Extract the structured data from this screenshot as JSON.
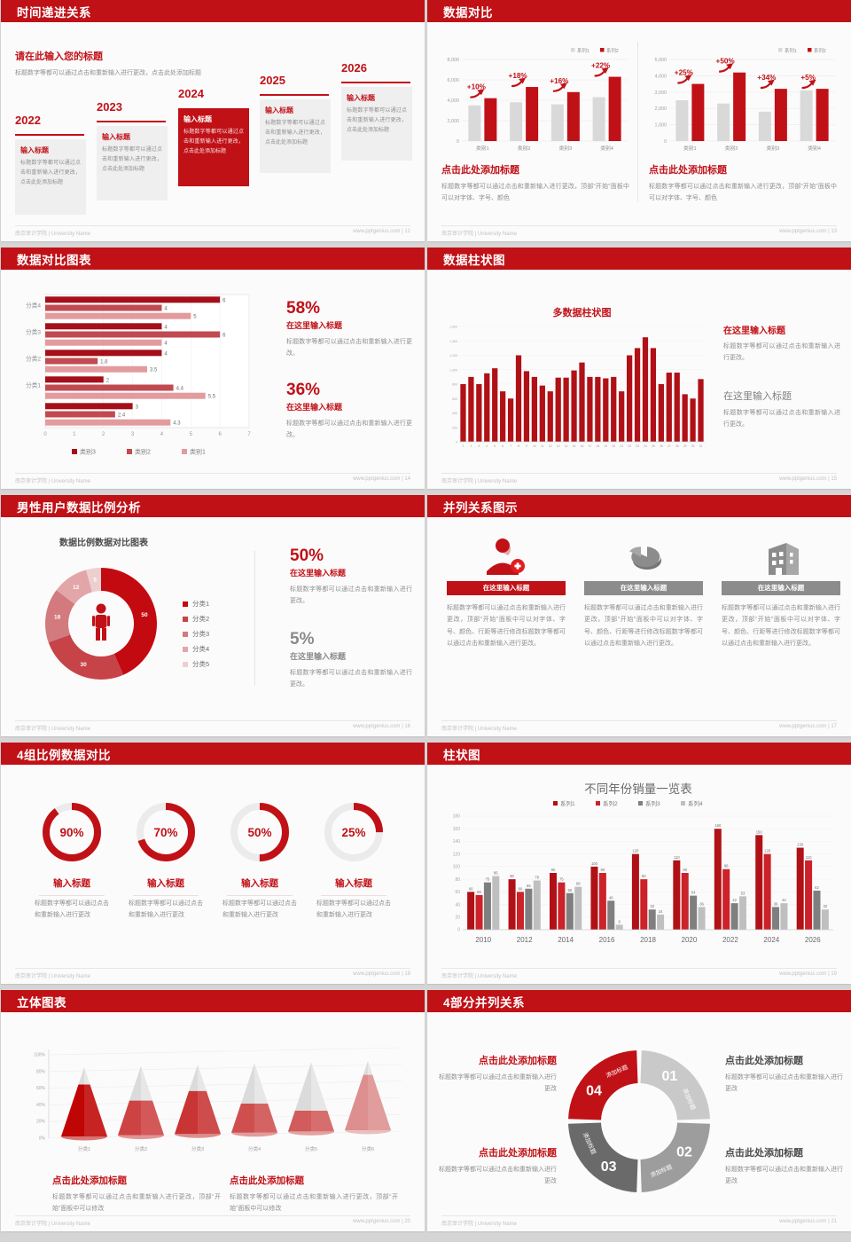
{
  "footer": {
    "left": "南京审计学院 | University Name"
  },
  "slides": {
    "timeline": {
      "header": "时间递进关系",
      "footer_right": "www.pptgenius.com | 12",
      "intro_title": "请在此输入您的标题",
      "intro_body": "标题数字等都可以通过点击和重新输入进行更改，点击此处添加标题",
      "items": [
        {
          "year": "2022",
          "title": "输入标题",
          "body": "标题数字等都可以通过点击和重新输入进行更改，点击此处添加标题",
          "highlight": false
        },
        {
          "year": "2023",
          "title": "输入标题",
          "body": "标题数字等都可以通过点击和重新输入进行更改，点击此处添加标题",
          "highlight": false
        },
        {
          "year": "2024",
          "title": "输入标题",
          "body": "标题数字等都可以通过点击和重新输入进行更改，点击此处添加标题",
          "highlight": true
        },
        {
          "year": "2025",
          "title": "输入标题",
          "body": "标题数字等都可以通过点击和重新输入进行更改，点击此处添加标题",
          "highlight": false
        },
        {
          "year": "2026",
          "title": "输入标题",
          "body": "标题数字等都可以通过点击和重新输入进行更改，点击此处添加标题",
          "highlight": false
        }
      ]
    },
    "compare": {
      "header": "数据对比",
      "footer_right": "www.pptgenius.com | 13",
      "blocks": [
        {
          "title": "点击此处添加标题",
          "body": "标题数字等都可以通过点击和重新输入进行更改，顶部“开始”面板中可以对字体、字号、颜色"
        },
        {
          "title": "点击此处添加标题",
          "body": "标题数字等都可以通过点击和重新输入进行更改，顶部“开始”面板中可以对字体、字号、颜色"
        }
      ]
    },
    "hbar": {
      "header": "数据对比图表",
      "footer_right": "www.pptgenius.com | 14",
      "stats": [
        {
          "pct": "58%",
          "title": "在这里输入标题",
          "body": "标题数字等都可以通过点击和重新输入进行更改。",
          "red": true
        },
        {
          "pct": "36%",
          "title": "在这里输入标题",
          "body": "标题数字等都可以通过点击和重新输入进行更改。",
          "red": true
        }
      ]
    },
    "col31": {
      "header": "数据柱状图",
      "footer_right": "www.pptgenius.com | 15",
      "stats": [
        {
          "title": "在这里输入标题",
          "body": "标题数字等都可以通过点击和重新输入进行更改。",
          "red": true
        },
        {
          "title": "在这里输入标题",
          "body": "标题数字等都可以通过点击和重新输入进行更改。",
          "red": false
        }
      ]
    },
    "donut": {
      "header": "男性用户数据比例分析",
      "footer_right": "www.pptgenius.com | 16",
      "stats": [
        {
          "pct": "50%",
          "title": "在这里输入标题",
          "body": "标题数字等都可以通过点击和重新输入进行更改。",
          "red": true
        },
        {
          "pct": "5%",
          "title": "在这里输入标题",
          "body": "标题数字等都可以通过点击和重新输入进行更改。",
          "red": false
        }
      ]
    },
    "parallel": {
      "header": "并列关系图示",
      "footer_right": "www.pptgenius.com | 17",
      "columns": [
        {
          "icon": "person-plus",
          "title": "在这里输入标题",
          "red": true,
          "body": "标题数字等都可以通过点击和重新输入进行更改，顶部“开始”面板中可以对字体、字号、颜色、行距等进行修改标题数字等都可以通过点击和重新输入进行更改。"
        },
        {
          "icon": "pie-3d",
          "title": "在这里输入标题",
          "red": false,
          "body": "标题数字等都可以通过点击和重新输入进行更改，顶部“开始”面板中可以对字体、字号、颜色、行距等进行修改标题数字等都可以通过点击和重新输入进行更改。"
        },
        {
          "icon": "building",
          "title": "在这里输入标题",
          "red": false,
          "body": "标题数字等都可以通过点击和重新输入进行更改，顶部“开始”面板中可以对字体、字号、颜色、行距等进行修改标题数字等都可以通过点击和重新输入进行更改。"
        }
      ]
    },
    "rings": {
      "header": "4组比例数据对比",
      "footer_right": "www.pptgenius.com | 18",
      "items": [
        {
          "label": "90%",
          "title": "输入标题",
          "body": "标题数字等都可以通过点击和重新输入进行更改"
        },
        {
          "label": "70%",
          "title": "输入标题",
          "body": "标题数字等都可以通过点击和重新输入进行更改"
        },
        {
          "label": "50%",
          "title": "输入标题",
          "body": "标题数字等都可以通过点击和重新输入进行更改"
        },
        {
          "label": "25%",
          "title": "输入标题",
          "body": "标题数字等都可以通过点击和重新输入进行更改"
        }
      ]
    },
    "years": {
      "header": "柱状图",
      "footer_right": "www.pptgenius.com | 19"
    },
    "cones": {
      "header": "立体图表",
      "footer_right": "www.pptgenius.com | 20",
      "blocks": [
        {
          "title": "点击此处添加标题",
          "body": "标题数字等都可以通过点击和重新输入进行更改，顶部“开始”面板中可以修改"
        },
        {
          "title": "点击此处添加标题",
          "body": "标题数字等都可以通过点击和重新输入进行更改，顶部“开始”面板中可以修改"
        }
      ]
    },
    "ring4": {
      "header": "4部分并列关系",
      "footer_right": "www.pptgenius.com | 21",
      "segment_label": "添加标题",
      "blocks": [
        {
          "side": "left",
          "row": "top",
          "red": true,
          "title": "点击此处添加标题",
          "body": "标题数字等都可以通过点击和重新输入进行更改"
        },
        {
          "side": "right",
          "row": "top",
          "red": false,
          "title": "点击此处添加标题",
          "body": "标题数字等都可以通过点击和重新输入进行更改"
        },
        {
          "side": "left",
          "row": "bottom",
          "red": true,
          "title": "点击此处添加标题",
          "body": "标题数字等都可以通过点击和重新输入进行更改"
        },
        {
          "side": "right",
          "row": "bottom",
          "red": false,
          "title": "点击此处添加标题",
          "body": "标题数字等都可以通过点击和重新输入进行更改"
        }
      ]
    }
  },
  "chart_data": {
    "compare_left": {
      "type": "bar",
      "categories": [
        "类别1",
        "类别2",
        "类别3",
        "类别4"
      ],
      "series": [
        {
          "name": "系列1",
          "values": [
            3500,
            3800,
            3600,
            4300
          ]
        },
        {
          "name": "系列2",
          "values": [
            4200,
            5300,
            4800,
            6300
          ]
        }
      ],
      "annotations": [
        "+10%",
        "+18%",
        "+16%",
        "+22%"
      ],
      "ylim": [
        0,
        8000
      ],
      "yticks": [
        "0",
        "2,000",
        "4,000",
        "6,000",
        "8,000"
      ],
      "colors": [
        "#d9d9d9",
        "#c01117"
      ],
      "legend_position": "top-right"
    },
    "compare_right": {
      "type": "bar",
      "categories": [
        "类别1",
        "类别2",
        "类别3",
        "类别4"
      ],
      "series": [
        {
          "name": "系列1",
          "values": [
            2500,
            2300,
            1800,
            3100
          ]
        },
        {
          "name": "系列2",
          "values": [
            3500,
            4200,
            3200,
            3200
          ]
        }
      ],
      "annotations": [
        "+25%",
        "+50%",
        "+34%",
        "+5%"
      ],
      "ylim": [
        0,
        5000
      ],
      "yticks": [
        "0",
        "1,000",
        "2,000",
        "3,000",
        "4,000",
        "5,000"
      ],
      "colors": [
        "#d9d9d9",
        "#c01117"
      ],
      "legend_position": "top-right"
    },
    "grouped_hbar": {
      "type": "bar",
      "orientation": "horizontal",
      "categories": [
        "分类4",
        "分类3",
        "分类2",
        "分类1",
        ""
      ],
      "series": [
        {
          "name": "类别3",
          "values": [
            6,
            4,
            4,
            2,
            3
          ]
        },
        {
          "name": "类别2",
          "values": [
            4,
            6,
            1.8,
            4.4,
            2.4
          ]
        },
        {
          "name": "类别1",
          "values": [
            5,
            4,
            3.5,
            5.5,
            4.3
          ]
        }
      ],
      "xlim": [
        0,
        7
      ],
      "xticks": [
        0,
        1,
        2,
        3,
        4,
        5,
        6,
        7
      ],
      "colors": [
        "#a50f19",
        "#c14a50",
        "#e39b9e"
      ],
      "legend_position": "bottom"
    },
    "multi_column": {
      "type": "bar",
      "title": "多数据柱状图",
      "x": [
        1,
        2,
        3,
        4,
        5,
        6,
        7,
        8,
        9,
        10,
        11,
        12,
        13,
        14,
        15,
        16,
        17,
        18,
        19,
        20,
        21,
        22,
        23,
        24,
        25,
        26,
        27,
        28,
        29,
        30,
        31
      ],
      "values": [
        800,
        900,
        800,
        950,
        1020,
        700,
        600,
        1200,
        980,
        900,
        780,
        700,
        890,
        890,
        990,
        1100,
        900,
        900,
        880,
        900,
        700,
        1200,
        1300,
        1450,
        1300,
        800,
        960,
        960,
        660,
        600,
        870
      ],
      "ylim": [
        0,
        1600
      ],
      "yticks": [
        "0",
        "200",
        "400",
        "600",
        "800",
        "1,000",
        "1,200",
        "1,400",
        "1,600"
      ],
      "color": "#b01116"
    },
    "male_ratio_donut": {
      "type": "pie",
      "title": "数据比例数据对比图表",
      "labels": [
        "分类1",
        "分类2",
        "分类3",
        "分类4",
        "分类5"
      ],
      "values": [
        50,
        30,
        18,
        12,
        5
      ],
      "colors": [
        "#c40a11",
        "#c64348",
        "#d27a7d",
        "#e2a6a8",
        "#eecfd0"
      ],
      "legend_position": "right"
    },
    "progress_rings": {
      "type": "pie",
      "labels": [
        "90%",
        "70%",
        "50%",
        "25%"
      ],
      "values": [
        90,
        70,
        50,
        25
      ],
      "color": "#c01117"
    },
    "sales_by_year": {
      "type": "bar",
      "title": "不同年份销量一览表",
      "categories": [
        "2010",
        "2012",
        "2014",
        "2016",
        "2018",
        "2020",
        "2022",
        "2024",
        "2026"
      ],
      "series": [
        {
          "name": "系列1",
          "values": [
            60,
            80,
            90,
            100,
            120,
            110,
            160,
            150,
            130
          ]
        },
        {
          "name": "系列2",
          "values": [
            55,
            60,
            75,
            90,
            80,
            90,
            96,
            120,
            110
          ]
        },
        {
          "name": "系列3",
          "values": [
            75,
            65,
            58,
            46,
            32,
            54,
            42,
            36,
            62
          ]
        },
        {
          "name": "系列4",
          "values": [
            85,
            78,
            68,
            8,
            24,
            36,
            53,
            42,
            32
          ]
        }
      ],
      "ylim": [
        0,
        180
      ],
      "ystep": 20,
      "colors": [
        "#b01116",
        "#cc2229",
        "#7f7f7f",
        "#bfbfbf"
      ],
      "legend_position": "top"
    },
    "cone_chart": {
      "type": "bar",
      "categories": [
        "分类1",
        "分类2",
        "分类3",
        "分类4",
        "分类5",
        "分类6"
      ],
      "values": [
        75,
        50,
        62,
        42,
        30,
        80
      ],
      "yticks": [
        "0%",
        "20%",
        "40%",
        "60%",
        "80%",
        "100%"
      ],
      "colors": [
        "#c00505",
        "#cd4343",
        "#c93434",
        "#cf4f4f",
        "#d25b5b",
        "#dd8f8f"
      ]
    },
    "four_parts": {
      "type": "pie",
      "labels": [
        "01",
        "02",
        "03",
        "04"
      ],
      "values": [
        25,
        25,
        25,
        25
      ],
      "segments": [
        {
          "num": "01",
          "color": "#c9c9c9"
        },
        {
          "num": "02",
          "color": "#9d9d9d"
        },
        {
          "num": "03",
          "color": "#6a6a6a"
        },
        {
          "num": "04",
          "color": "#c01117"
        }
      ]
    }
  }
}
